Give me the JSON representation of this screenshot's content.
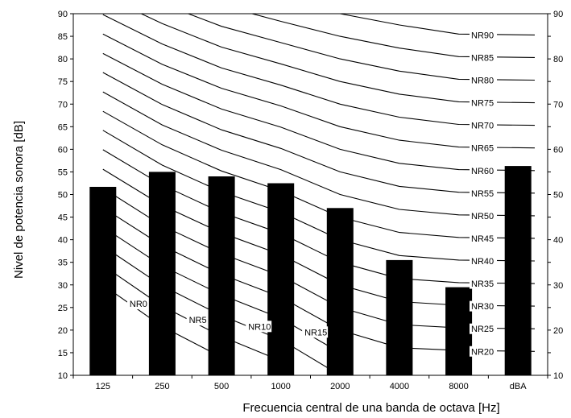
{
  "chart_data": {
    "type": "bar",
    "categories": [
      "125",
      "250",
      "500",
      "1000",
      "2000",
      "4000",
      "8000",
      "dBA"
    ],
    "values": [
      51.7,
      55,
      54,
      52.5,
      47,
      35.5,
      29.5,
      56.3
    ],
    "xlabel": "Frecuencia central de una banda de octava [Hz]",
    "ylabel": "Nivel de potencia sonora [dB]",
    "ylim": [
      10,
      90
    ],
    "yticks": [
      "10",
      "15",
      "20",
      "25",
      "30",
      "35",
      "40",
      "45",
      "50",
      "55",
      "60",
      "65",
      "70",
      "75",
      "80",
      "85",
      "90"
    ],
    "bar_color": "#000000",
    "grid": false,
    "nr_curves": [
      {
        "name": "NR90",
        "x": [
          "125",
          "250",
          "500",
          "1000",
          "2000",
          "4000",
          "8000"
        ],
        "values": [
          null,
          101.1,
          96.3,
          92.9,
          90,
          87.5,
          85.5
        ]
      },
      {
        "name": "NR85",
        "x": [
          "125",
          "250",
          "500",
          "1000",
          "2000",
          "4000",
          "8000"
        ],
        "values": [
          null,
          96.7,
          91.8,
          88.3,
          85,
          82.4,
          80.5
        ]
      },
      {
        "name": "NR80",
        "x": [
          "125",
          "250",
          "500",
          "1000",
          "2000",
          "4000",
          "8000"
        ],
        "values": [
          98.3,
          92.2,
          87.2,
          83.6,
          80,
          77.3,
          75.5
        ]
      },
      {
        "name": "NR75",
        "x": [
          "125",
          "250",
          "500",
          "1000",
          "2000",
          "4000",
          "8000"
        ],
        "values": [
          94,
          87.8,
          82.6,
          78.9,
          75,
          72.2,
          70.5
        ]
      },
      {
        "name": "NR70",
        "x": [
          "125",
          "250",
          "500",
          "1000",
          "2000",
          "4000",
          "8000"
        ],
        "values": [
          89.8,
          83.3,
          78,
          74.2,
          70,
          67.1,
          65.5
        ]
      },
      {
        "name": "NR65",
        "x": [
          "125",
          "250",
          "500",
          "1000",
          "2000",
          "4000",
          "8000"
        ],
        "values": [
          85.5,
          78.8,
          73.5,
          69.6,
          65,
          62,
          60.5
        ]
      },
      {
        "name": "NR60",
        "x": [
          "125",
          "250",
          "500",
          "1000",
          "2000",
          "4000",
          "8000"
        ],
        "values": [
          81.2,
          74.4,
          68.9,
          64.9,
          60,
          56.9,
          55.5
        ]
      },
      {
        "name": "NR55",
        "x": [
          "125",
          "250",
          "500",
          "1000",
          "2000",
          "4000",
          "8000"
        ],
        "values": [
          77,
          69.9,
          64.3,
          60.2,
          55,
          51.8,
          50.5
        ]
      },
      {
        "name": "NR50",
        "x": [
          "125",
          "250",
          "500",
          "1000",
          "2000",
          "4000",
          "8000"
        ],
        "values": [
          72.7,
          65.4,
          59.8,
          55.5,
          50,
          46.7,
          45.5
        ]
      },
      {
        "name": "NR45",
        "x": [
          "125",
          "250",
          "500",
          "1000",
          "2000",
          "4000",
          "8000"
        ],
        "values": [
          68.4,
          61,
          55.2,
          50.8,
          45,
          41.6,
          40.5
        ]
      },
      {
        "name": "NR40",
        "x": [
          "125",
          "250",
          "500",
          "1000",
          "2000",
          "4000",
          "8000"
        ],
        "values": [
          64.2,
          56.5,
          50.6,
          46.1,
          40,
          36.5,
          35.5
        ]
      },
      {
        "name": "NR35",
        "x": [
          "125",
          "250",
          "500",
          "1000",
          "2000",
          "4000",
          "8000"
        ],
        "values": [
          59.9,
          52.1,
          46,
          41.4,
          35,
          31.4,
          30.5
        ]
      },
      {
        "name": "NR30",
        "x": [
          "125",
          "250",
          "500",
          "1000",
          "2000",
          "4000",
          "8000"
        ],
        "values": [
          55.6,
          47.6,
          41.5,
          36.7,
          30,
          26.3,
          25.5
        ]
      },
      {
        "name": "NR25",
        "x": [
          "125",
          "250",
          "500",
          "1000",
          "2000",
          "4000",
          "8000"
        ],
        "values": [
          51.4,
          43.1,
          36.9,
          32,
          25,
          21.2,
          20.5
        ]
      },
      {
        "name": "NR20",
        "x": [
          "125",
          "250",
          "500",
          "1000",
          "2000",
          "4000",
          "8000"
        ],
        "values": [
          47.1,
          38.7,
          32.3,
          27.3,
          20,
          16.1,
          15.5
        ]
      },
      {
        "name": "NR15",
        "x": [
          "125",
          "250",
          "500",
          "1000",
          "2000",
          "4000",
          "8000"
        ],
        "values": [
          42.8,
          34.2,
          27.8,
          22.6,
          15,
          null,
          null
        ]
      },
      {
        "name": "NR10",
        "x": [
          "125",
          "250",
          "500",
          "1000",
          "2000",
          "4000",
          "8000"
        ],
        "values": [
          38.6,
          29.8,
          23.2,
          17.9,
          10,
          null,
          null
        ]
      },
      {
        "name": "NR5",
        "x": [
          "125",
          "250",
          "500",
          "1000",
          "2000",
          "4000",
          "8000"
        ],
        "values": [
          34.3,
          25.3,
          18.6,
          13.2,
          null,
          null,
          null
        ]
      },
      {
        "name": "NR0",
        "x": [
          "125",
          "250",
          "500",
          "1000",
          "2000",
          "4000",
          "8000"
        ],
        "values": [
          30,
          20.8,
          14,
          null,
          null,
          null,
          null
        ]
      }
    ]
  }
}
